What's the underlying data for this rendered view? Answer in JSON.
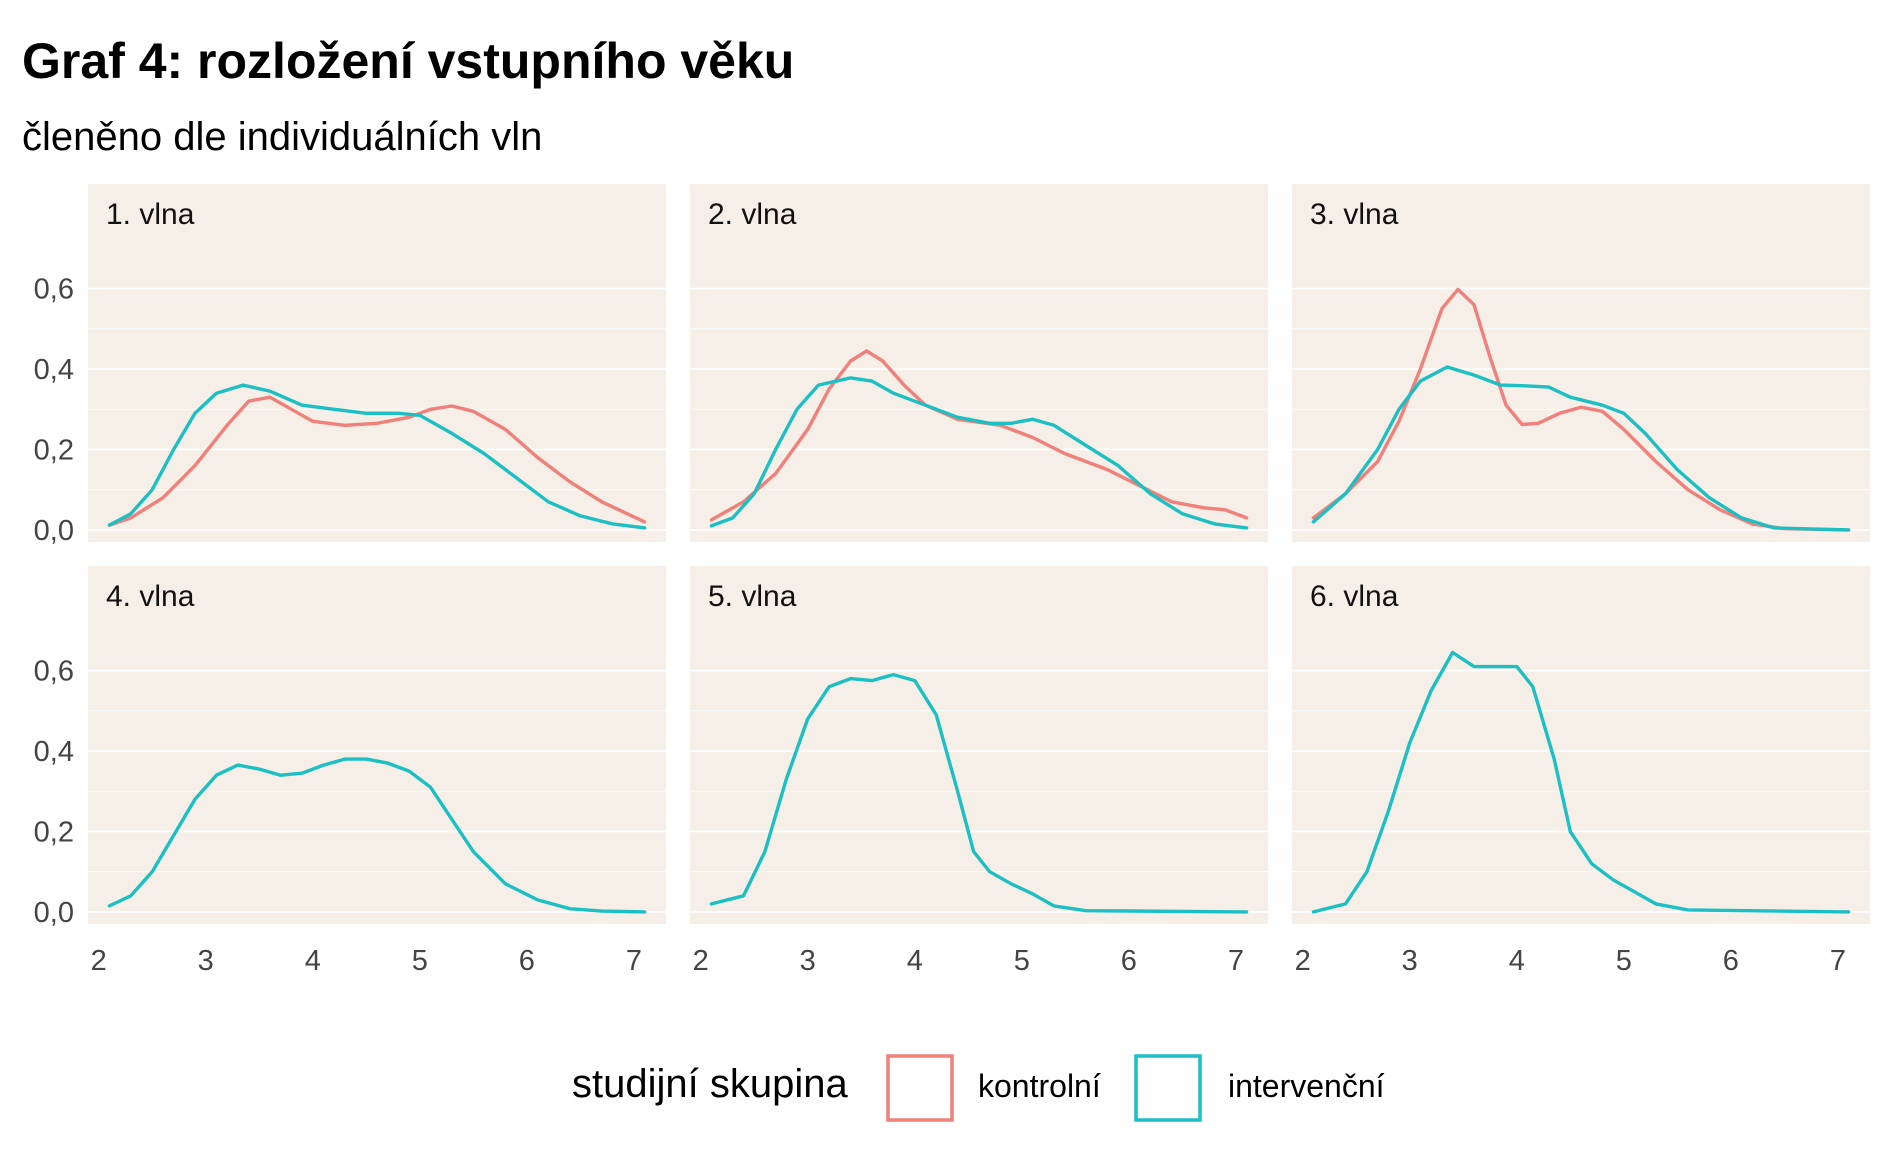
{
  "title": "Graf 4: rozložení vstupního věku",
  "subtitle": "členěno dle individuálních vln",
  "colors": {
    "panel_background": "#f5efe7",
    "gridline": "#ffffff",
    "kontrolni": "#f08079",
    "intervencni": "#1bbfc4"
  },
  "legend": {
    "title": "studijní skupina",
    "items": [
      {
        "label": "kontrolní",
        "color": "#f08079"
      },
      {
        "label": "intervenční",
        "color": "#1bbfc4"
      }
    ]
  },
  "chart_data": {
    "type": "line",
    "subtype": "density",
    "facet_layout": "2x3",
    "x_ticks": [
      2,
      3,
      4,
      5,
      6,
      7
    ],
    "y_ticks": [
      "0,0",
      "0,2",
      "0,4",
      "0,6"
    ],
    "y_tick_values": [
      0,
      0.2,
      0.4,
      0.6
    ],
    "xlim": [
      1.9,
      7.3
    ],
    "ylim": [
      -0.03,
      0.86
    ],
    "grid": true,
    "legend_position": "bottom",
    "panels": [
      {
        "label": "1. vlna",
        "series": [
          {
            "name": "kontrolní",
            "points": [
              [
                2.1,
                0.012
              ],
              [
                2.3,
                0.03
              ],
              [
                2.6,
                0.08
              ],
              [
                2.9,
                0.16
              ],
              [
                3.2,
                0.26
              ],
              [
                3.4,
                0.32
              ],
              [
                3.6,
                0.33
              ],
              [
                3.8,
                0.3
              ],
              [
                4.0,
                0.27
              ],
              [
                4.3,
                0.26
              ],
              [
                4.6,
                0.265
              ],
              [
                4.9,
                0.28
              ],
              [
                5.1,
                0.3
              ],
              [
                5.3,
                0.308
              ],
              [
                5.5,
                0.295
              ],
              [
                5.8,
                0.25
              ],
              [
                6.1,
                0.18
              ],
              [
                6.4,
                0.12
              ],
              [
                6.7,
                0.07
              ],
              [
                7.1,
                0.02
              ]
            ]
          },
          {
            "name": "intervenční",
            "points": [
              [
                2.1,
                0.012
              ],
              [
                2.3,
                0.04
              ],
              [
                2.5,
                0.1
              ],
              [
                2.7,
                0.2
              ],
              [
                2.9,
                0.29
              ],
              [
                3.1,
                0.34
              ],
              [
                3.35,
                0.36
              ],
              [
                3.6,
                0.345
              ],
              [
                3.9,
                0.31
              ],
              [
                4.2,
                0.3
              ],
              [
                4.5,
                0.29
              ],
              [
                4.8,
                0.29
              ],
              [
                5.0,
                0.285
              ],
              [
                5.3,
                0.24
              ],
              [
                5.6,
                0.19
              ],
              [
                5.9,
                0.13
              ],
              [
                6.2,
                0.07
              ],
              [
                6.5,
                0.035
              ],
              [
                6.8,
                0.015
              ],
              [
                7.1,
                0.005
              ]
            ]
          }
        ]
      },
      {
        "label": "2. vlna",
        "series": [
          {
            "name": "kontrolní",
            "points": [
              [
                2.1,
                0.025
              ],
              [
                2.4,
                0.07
              ],
              [
                2.7,
                0.14
              ],
              [
                3.0,
                0.25
              ],
              [
                3.2,
                0.35
              ],
              [
                3.4,
                0.42
              ],
              [
                3.55,
                0.445
              ],
              [
                3.7,
                0.42
              ],
              [
                3.9,
                0.36
              ],
              [
                4.1,
                0.31
              ],
              [
                4.4,
                0.275
              ],
              [
                4.8,
                0.26
              ],
              [
                5.1,
                0.23
              ],
              [
                5.4,
                0.19
              ],
              [
                5.8,
                0.15
              ],
              [
                6.1,
                0.11
              ],
              [
                6.4,
                0.07
              ],
              [
                6.7,
                0.055
              ],
              [
                6.9,
                0.05
              ],
              [
                7.1,
                0.03
              ]
            ]
          },
          {
            "name": "intervenční",
            "points": [
              [
                2.1,
                0.01
              ],
              [
                2.3,
                0.03
              ],
              [
                2.5,
                0.09
              ],
              [
                2.7,
                0.2
              ],
              [
                2.9,
                0.3
              ],
              [
                3.1,
                0.36
              ],
              [
                3.4,
                0.378
              ],
              [
                3.6,
                0.37
              ],
              [
                3.8,
                0.34
              ],
              [
                4.1,
                0.31
              ],
              [
                4.4,
                0.28
              ],
              [
                4.7,
                0.265
              ],
              [
                4.9,
                0.265
              ],
              [
                5.1,
                0.275
              ],
              [
                5.3,
                0.26
              ],
              [
                5.6,
                0.21
              ],
              [
                5.9,
                0.16
              ],
              [
                6.2,
                0.09
              ],
              [
                6.5,
                0.04
              ],
              [
                6.8,
                0.015
              ],
              [
                7.1,
                0.005
              ]
            ]
          }
        ]
      },
      {
        "label": "3. vlna",
        "series": [
          {
            "name": "kontrolní",
            "points": [
              [
                2.1,
                0.03
              ],
              [
                2.4,
                0.09
              ],
              [
                2.7,
                0.17
              ],
              [
                2.9,
                0.27
              ],
              [
                3.1,
                0.4
              ],
              [
                3.3,
                0.55
              ],
              [
                3.45,
                0.598
              ],
              [
                3.6,
                0.56
              ],
              [
                3.75,
                0.43
              ],
              [
                3.9,
                0.31
              ],
              [
                4.05,
                0.262
              ],
              [
                4.2,
                0.265
              ],
              [
                4.4,
                0.29
              ],
              [
                4.6,
                0.305
              ],
              [
                4.8,
                0.295
              ],
              [
                5.0,
                0.25
              ],
              [
                5.3,
                0.17
              ],
              [
                5.6,
                0.1
              ],
              [
                5.9,
                0.05
              ],
              [
                6.2,
                0.015
              ],
              [
                6.5,
                0.003
              ],
              [
                7.1,
                0.0
              ]
            ]
          },
          {
            "name": "intervenční",
            "points": [
              [
                2.1,
                0.02
              ],
              [
                2.4,
                0.09
              ],
              [
                2.7,
                0.2
              ],
              [
                2.9,
                0.3
              ],
              [
                3.1,
                0.37
              ],
              [
                3.35,
                0.405
              ],
              [
                3.6,
                0.385
              ],
              [
                3.85,
                0.36
              ],
              [
                4.1,
                0.358
              ],
              [
                4.3,
                0.355
              ],
              [
                4.5,
                0.33
              ],
              [
                4.8,
                0.31
              ],
              [
                5.0,
                0.29
              ],
              [
                5.2,
                0.24
              ],
              [
                5.5,
                0.15
              ],
              [
                5.8,
                0.08
              ],
              [
                6.1,
                0.03
              ],
              [
                6.4,
                0.005
              ],
              [
                7.1,
                0.0
              ]
            ]
          }
        ]
      },
      {
        "label": "4. vlna",
        "series": [
          {
            "name": "intervenční",
            "points": [
              [
                2.1,
                0.015
              ],
              [
                2.3,
                0.04
              ],
              [
                2.5,
                0.1
              ],
              [
                2.7,
                0.19
              ],
              [
                2.9,
                0.28
              ],
              [
                3.1,
                0.34
              ],
              [
                3.3,
                0.365
              ],
              [
                3.5,
                0.355
              ],
              [
                3.7,
                0.34
              ],
              [
                3.9,
                0.345
              ],
              [
                4.1,
                0.365
              ],
              [
                4.3,
                0.38
              ],
              [
                4.5,
                0.38
              ],
              [
                4.7,
                0.37
              ],
              [
                4.9,
                0.35
              ],
              [
                5.1,
                0.31
              ],
              [
                5.3,
                0.23
              ],
              [
                5.5,
                0.15
              ],
              [
                5.8,
                0.07
              ],
              [
                6.1,
                0.03
              ],
              [
                6.4,
                0.008
              ],
              [
                6.7,
                0.002
              ],
              [
                7.1,
                0.0
              ]
            ]
          }
        ]
      },
      {
        "label": "5. vlna",
        "series": [
          {
            "name": "intervenční",
            "points": [
              [
                2.1,
                0.02
              ],
              [
                2.4,
                0.04
              ],
              [
                2.6,
                0.15
              ],
              [
                2.8,
                0.33
              ],
              [
                3.0,
                0.48
              ],
              [
                3.2,
                0.56
              ],
              [
                3.4,
                0.58
              ],
              [
                3.6,
                0.575
              ],
              [
                3.8,
                0.59
              ],
              [
                4.0,
                0.575
              ],
              [
                4.2,
                0.49
              ],
              [
                4.4,
                0.3
              ],
              [
                4.55,
                0.15
              ],
              [
                4.7,
                0.1
              ],
              [
                4.9,
                0.07
              ],
              [
                5.1,
                0.045
              ],
              [
                5.3,
                0.015
              ],
              [
                5.6,
                0.003
              ],
              [
                7.1,
                0.0
              ]
            ]
          }
        ]
      },
      {
        "label": "6. vlna",
        "series": [
          {
            "name": "intervenční",
            "points": [
              [
                2.1,
                0.0
              ],
              [
                2.4,
                0.02
              ],
              [
                2.6,
                0.1
              ],
              [
                2.8,
                0.25
              ],
              [
                3.0,
                0.42
              ],
              [
                3.2,
                0.55
              ],
              [
                3.4,
                0.645
              ],
              [
                3.6,
                0.61
              ],
              [
                3.8,
                0.61
              ],
              [
                4.0,
                0.61
              ],
              [
                4.15,
                0.56
              ],
              [
                4.35,
                0.38
              ],
              [
                4.5,
                0.2
              ],
              [
                4.7,
                0.12
              ],
              [
                4.9,
                0.08
              ],
              [
                5.1,
                0.05
              ],
              [
                5.3,
                0.02
              ],
              [
                5.6,
                0.005
              ],
              [
                7.1,
                0.0
              ]
            ]
          }
        ]
      }
    ]
  }
}
